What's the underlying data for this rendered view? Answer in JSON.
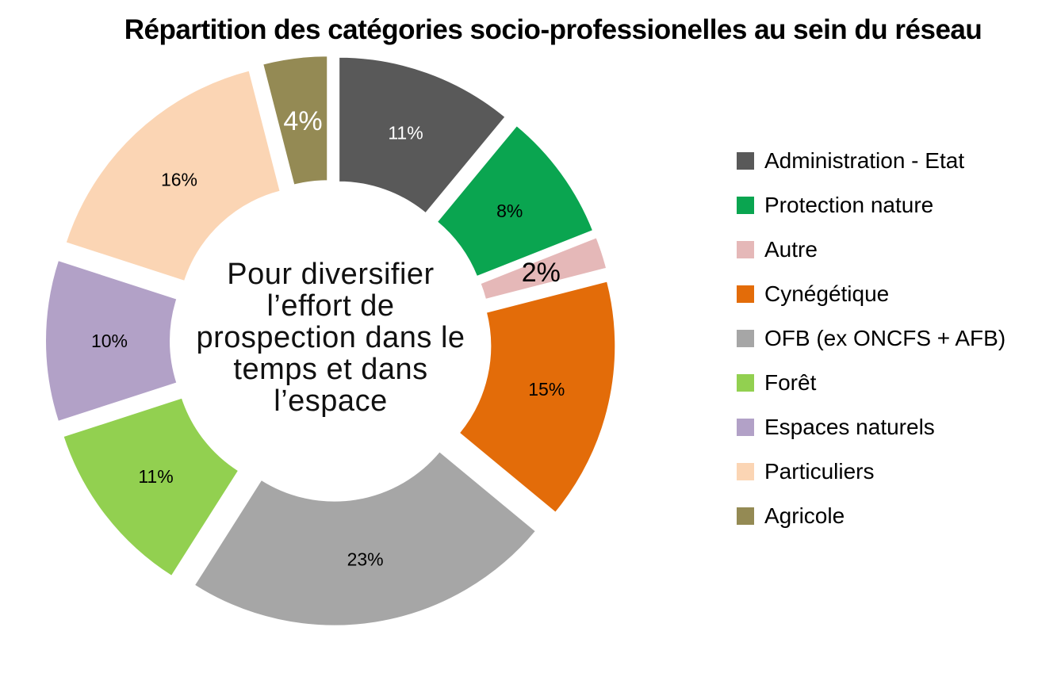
{
  "title": "Répartition des catégories socio-professionelles au sein du réseau",
  "center_text": {
    "lines": [
      "Pour diversifier",
      "l’effort de",
      "prospection dans le",
      "temps et dans",
      "l’espace"
    ]
  },
  "chart_data": {
    "type": "pie",
    "subtype": "exploded-donut",
    "title": "Répartition des catégories socio-professionelles au sein du réseau",
    "categories": [
      "Administration - Etat",
      "Protection nature",
      "Autre",
      "Cynégétique",
      "OFB (ex ONCFS + AFB)",
      "Forêt",
      "Espaces naturels",
      "Particuliers",
      "Agricole"
    ],
    "values": [
      11,
      8,
      2,
      15,
      23,
      11,
      10,
      16,
      4
    ],
    "unit": "%",
    "colors": [
      "#595959",
      "#0aa550",
      "#e5b8b8",
      "#e36c09",
      "#a6a6a6",
      "#92d050",
      "#b2a1c7",
      "#fbd5b4",
      "#948a54"
    ],
    "slice_labels": [
      {
        "text": "11%",
        "color": "#ffffff",
        "size": "normal"
      },
      {
        "text": "8%",
        "color": "#000000",
        "size": "normal"
      },
      {
        "text": "2%",
        "color": "#000000",
        "size": "large"
      },
      {
        "text": "15%",
        "color": "#000000",
        "size": "normal"
      },
      {
        "text": "23%",
        "color": "#000000",
        "size": "normal"
      },
      {
        "text": "11%",
        "color": "#000000",
        "size": "normal"
      },
      {
        "text": "10%",
        "color": "#000000",
        "size": "normal"
      },
      {
        "text": "16%",
        "color": "#000000",
        "size": "normal"
      },
      {
        "text": "4%",
        "color": "#ffffff",
        "size": "large"
      }
    ],
    "start_angle_deg": 0,
    "direction": "clockwise",
    "legend_position": "right",
    "center_text": "Pour diversifier l’effort de prospection dans le temps et dans l’espace"
  }
}
